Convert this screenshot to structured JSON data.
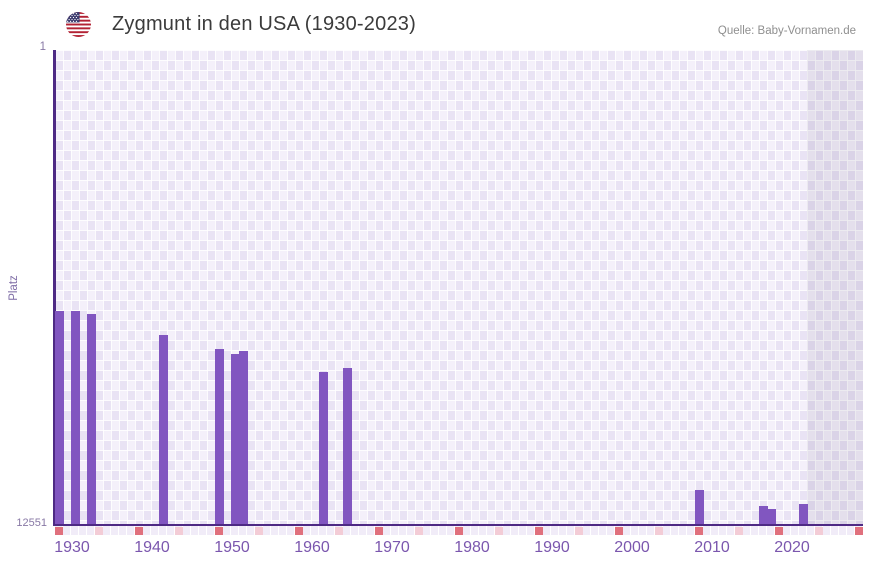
{
  "header": {
    "title": "Zygmunt in den USA (1930-2023)",
    "source": "Quelle: Baby-Vornamen.de"
  },
  "chart_data": {
    "type": "bar",
    "title": "Zygmunt in den USA (1930-2023)",
    "xlabel": "",
    "ylabel": "Platz",
    "y_min_label": "1",
    "y_max_label": "12551",
    "ylim": [
      1,
      12551
    ],
    "y_inverted": true,
    "x_range_displayed": [
      1930,
      2030
    ],
    "data_range": [
      1930,
      2023
    ],
    "x_tick_interval": 5,
    "x_label_interval": 10,
    "x_labels": [
      "1930",
      "1940",
      "1950",
      "1960",
      "1970",
      "1980",
      "1990",
      "2000",
      "2010",
      "2020"
    ],
    "series": [
      {
        "year": 1930,
        "rank": 6910
      },
      {
        "year": 1932,
        "rank": 6910
      },
      {
        "year": 1934,
        "rank": 6990
      },
      {
        "year": 1943,
        "rank": 7550
      },
      {
        "year": 1950,
        "rank": 7920
      },
      {
        "year": 1952,
        "rank": 8050
      },
      {
        "year": 1953,
        "rank": 7970
      },
      {
        "year": 1963,
        "rank": 8530
      },
      {
        "year": 1966,
        "rank": 8420
      },
      {
        "year": 2010,
        "rank": 11650
      },
      {
        "year": 2018,
        "rank": 12080
      },
      {
        "year": 2019,
        "rank": 12150
      },
      {
        "year": 2023,
        "rank": 12020
      }
    ],
    "future_shaded_region": [
      2024,
      2030
    ],
    "legend": null,
    "grid": "checkered",
    "colors": {
      "bar": "#8156c0",
      "axis": "#4e2a84",
      "decade_tick": "#e0707d",
      "half_decade_tick": "#f3ccd6",
      "x_label": "#7b57ae",
      "y_label": "#8878a5"
    }
  }
}
